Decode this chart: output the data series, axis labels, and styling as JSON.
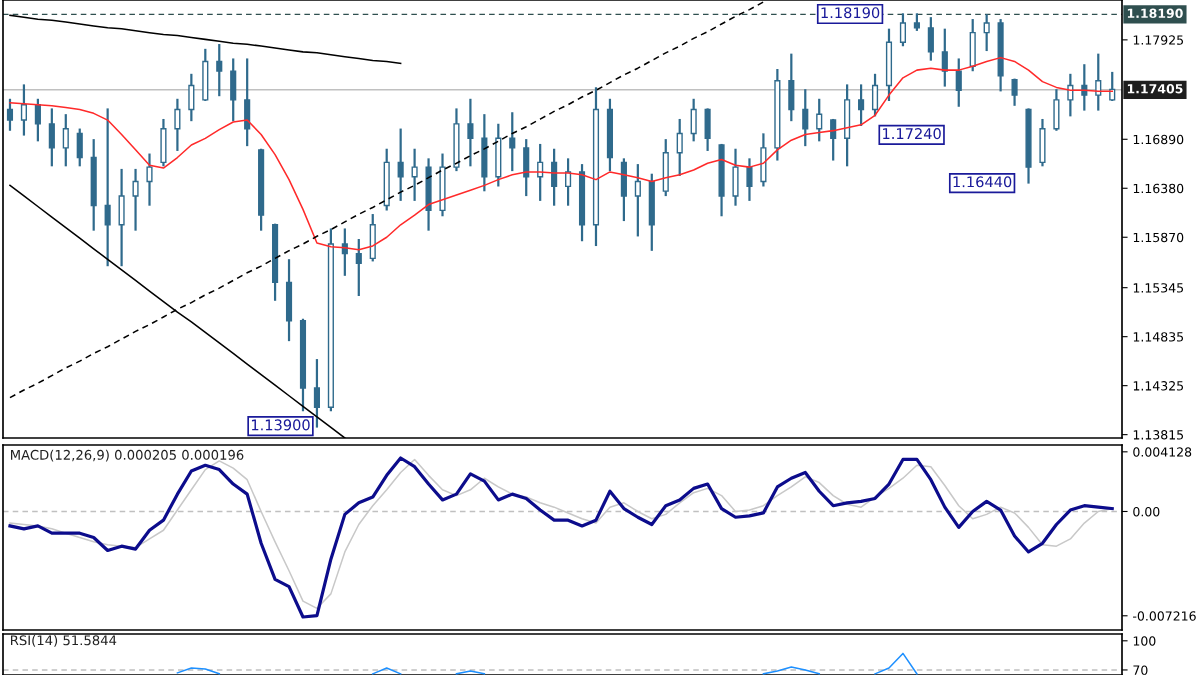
{
  "chart_data": [
    {
      "type": "candlestick",
      "color": "#2f6a8c",
      "tick_labels": "y",
      "categories": [
        null,
        null,
        null,
        null,
        null,
        null,
        null,
        null,
        null,
        null,
        null,
        null,
        null,
        null,
        null,
        null,
        null,
        null,
        null,
        null,
        null,
        null,
        null,
        null,
        null,
        null,
        null,
        null,
        null,
        null,
        null,
        null,
        null,
        null,
        null,
        null,
        null,
        null,
        null,
        null,
        null,
        null,
        null,
        null,
        null,
        null,
        null,
        null,
        null,
        null,
        null,
        null,
        null,
        null,
        null,
        null,
        null,
        null,
        null,
        null,
        null,
        null,
        null,
        null,
        null,
        null,
        null,
        null,
        null,
        null,
        null,
        null,
        null,
        null,
        null,
        null,
        null,
        null,
        null,
        null
      ],
      "ohlc": [
        [
          1.172,
          1.173,
          1.1699,
          1.1709
        ],
        [
          1.1709,
          1.1745,
          1.1694,
          1.1725
        ],
        [
          1.1725,
          1.173,
          1.1688,
          1.1705
        ],
        [
          1.1705,
          1.172,
          1.1662,
          1.168
        ],
        [
          1.168,
          1.1714,
          1.1662,
          1.17
        ],
        [
          1.1695,
          1.1699,
          1.1662,
          1.167
        ],
        [
          1.167,
          1.1688,
          1.1595,
          1.162
        ],
        [
          1.162,
          1.172,
          1.1558,
          1.16
        ],
        [
          1.16,
          1.1657,
          1.1558,
          1.163
        ],
        [
          1.163,
          1.1657,
          1.1595,
          1.1645
        ],
        [
          1.1645,
          1.1673,
          1.1621,
          1.166
        ],
        [
          1.1665,
          1.1709,
          1.1662,
          1.17
        ],
        [
          1.17,
          1.173,
          1.1678,
          1.172
        ],
        [
          1.172,
          1.1756,
          1.1709,
          1.1745
        ],
        [
          1.173,
          1.1782,
          1.173,
          1.177
        ],
        [
          1.177,
          1.1787,
          1.1735,
          1.176
        ],
        [
          1.176,
          1.1772,
          1.1709,
          1.173
        ],
        [
          1.173,
          1.1772,
          1.1683,
          1.17
        ],
        [
          1.1678,
          1.1678,
          1.1595,
          1.161
        ],
        [
          1.16,
          1.16,
          1.1522,
          1.154
        ],
        [
          1.154,
          1.1563,
          1.148,
          1.15
        ],
        [
          1.15,
          1.1501,
          1.1407,
          1.143
        ],
        [
          1.143,
          1.1459,
          1.139,
          1.141
        ],
        [
          1.141,
          1.1595,
          1.1407,
          1.158
        ],
        [
          1.158,
          1.1595,
          1.1548,
          1.157
        ],
        [
          1.157,
          1.1584,
          1.1527,
          1.156
        ],
        [
          1.1565,
          1.161,
          1.1563,
          1.16
        ],
        [
          1.162,
          1.1678,
          1.1616,
          1.1665
        ],
        [
          1.1665,
          1.1699,
          1.1626,
          1.165
        ],
        [
          1.165,
          1.1678,
          1.1626,
          1.166
        ],
        [
          1.166,
          1.1668,
          1.1595,
          1.1615
        ],
        [
          1.1615,
          1.1673,
          1.161,
          1.166
        ],
        [
          1.166,
          1.172,
          1.1657,
          1.1705
        ],
        [
          1.1705,
          1.173,
          1.1662,
          1.169
        ],
        [
          1.169,
          1.1714,
          1.1636,
          1.165
        ],
        [
          1.165,
          1.1704,
          1.1641,
          1.169
        ],
        [
          1.169,
          1.1716,
          1.1657,
          1.168
        ],
        [
          1.168,
          1.1688,
          1.1631,
          1.165
        ],
        [
          1.165,
          1.1683,
          1.1626,
          1.1665
        ],
        [
          1.1665,
          1.1678,
          1.1621,
          1.164
        ],
        [
          1.164,
          1.1668,
          1.1621,
          1.1655
        ],
        [
          1.1655,
          1.1662,
          1.1584,
          1.16
        ],
        [
          1.16,
          1.1742,
          1.1579,
          1.172
        ],
        [
          1.172,
          1.173,
          1.1657,
          1.167
        ],
        [
          1.1665,
          1.1668,
          1.1605,
          1.163
        ],
        [
          1.163,
          1.1662,
          1.1589,
          1.1645
        ],
        [
          1.1645,
          1.1652,
          1.1574,
          1.16
        ],
        [
          1.1635,
          1.1688,
          1.1631,
          1.1675
        ],
        [
          1.1675,
          1.1709,
          1.1652,
          1.1695
        ],
        [
          1.1695,
          1.173,
          1.1688,
          1.172
        ],
        [
          1.172,
          1.172,
          1.1678,
          1.169
        ],
        [
          1.1683,
          1.1683,
          1.161,
          1.163
        ],
        [
          1.163,
          1.1678,
          1.1621,
          1.166
        ],
        [
          1.166,
          1.1668,
          1.1626,
          1.164
        ],
        [
          1.1645,
          1.1694,
          1.1641,
          1.168
        ],
        [
          1.168,
          1.1761,
          1.1668,
          1.175
        ],
        [
          1.175,
          1.1777,
          1.1709,
          1.172
        ],
        [
          1.172,
          1.174,
          1.1683,
          1.17
        ],
        [
          1.17,
          1.173,
          1.1688,
          1.1715
        ],
        [
          1.1709,
          1.1709,
          1.1668,
          1.169
        ],
        [
          1.169,
          1.1745,
          1.1662,
          1.173
        ],
        [
          1.173,
          1.1745,
          1.1704,
          1.172
        ],
        [
          1.172,
          1.1756,
          1.1714,
          1.1745
        ],
        [
          1.1745,
          1.1803,
          1.173,
          1.179
        ],
        [
          1.179,
          1.1819,
          1.1787,
          1.181
        ],
        [
          1.181,
          1.1819,
          1.1803,
          1.1805
        ],
        [
          1.1805,
          1.1815,
          1.1772,
          1.178
        ],
        [
          1.178,
          1.1803,
          1.1745,
          1.176
        ],
        [
          1.176,
          1.1772,
          1.1724,
          1.174
        ],
        [
          1.1765,
          1.1813,
          1.1761,
          1.18
        ],
        [
          1.18,
          1.1818,
          1.1782,
          1.181
        ],
        [
          1.181,
          1.1813,
          1.174,
          1.1755
        ],
        [
          1.1751,
          1.1751,
          1.1725,
          1.1735
        ],
        [
          1.172,
          1.172,
          1.1644,
          1.166
        ],
        [
          1.1665,
          1.1709,
          1.1662,
          1.17
        ],
        [
          1.17,
          1.174,
          1.1699,
          1.173
        ],
        [
          1.173,
          1.1756,
          1.1714,
          1.1745
        ],
        [
          1.1745,
          1.1766,
          1.172,
          1.1735
        ],
        [
          1.1735,
          1.1777,
          1.172,
          1.175
        ],
        [
          1.173,
          1.1758,
          1.173,
          1.1741
        ]
      ],
      "series": [
        {
          "type": "line",
          "color": "#ff2a2a",
          "line_style": "solid",
          "values": [
            1.1727,
            1.1726,
            1.1725,
            1.1724,
            1.1722,
            1.172,
            1.1716,
            1.1709,
            1.1694,
            1.1678,
            1.1662,
            1.1659,
            1.167,
            1.1683,
            1.169,
            1.1699,
            1.1707,
            1.1709,
            1.1694,
            1.1673,
            1.1647,
            1.1616,
            1.1581,
            1.1577,
            1.1576,
            1.1574,
            1.1578,
            1.1587,
            1.16,
            1.161,
            1.1621,
            1.1626,
            1.1631,
            1.1636,
            1.1641,
            1.1647,
            1.1652,
            1.1655,
            1.1655,
            1.1654,
            1.1654,
            1.1652,
            1.1647,
            1.1655,
            1.1652,
            1.1649,
            1.1645,
            1.1649,
            1.1652,
            1.1657,
            1.1664,
            1.1668,
            1.1662,
            1.166,
            1.1664,
            1.1678,
            1.1688,
            1.1694,
            1.1696,
            1.1698,
            1.1701,
            1.1704,
            1.1714,
            1.1735,
            1.1753,
            1.1761,
            1.1763,
            1.1761,
            1.1761,
            1.1765,
            1.177,
            1.1774,
            1.177,
            1.1761,
            1.1749,
            1.1743,
            1.174,
            1.174,
            1.1739,
            1.1739
          ]
        },
        {
          "type": "line",
          "color": "#000000",
          "line_style": "solid",
          "values": [
            1.1818,
            1.1816,
            1.1814,
            1.1813,
            1.1811,
            1.1809,
            1.1807,
            1.1805,
            1.1804,
            1.1802,
            1.18,
            1.1798,
            1.1797,
            1.1795,
            1.1793,
            1.1791,
            1.1789,
            1.1788,
            1.1786,
            1.1784,
            1.1782,
            1.178,
            1.1779,
            1.1777,
            1.1775,
            1.1773,
            1.1771,
            1.177,
            1.1768,
            null,
            null,
            null,
            null,
            null,
            null,
            null,
            null,
            null,
            null,
            null,
            null,
            null,
            null,
            null,
            null,
            null,
            null,
            null,
            null,
            null,
            null,
            null,
            null,
            null,
            null,
            null,
            null,
            null,
            null,
            null,
            null,
            null,
            null,
            null,
            null,
            null,
            null,
            null,
            null,
            null,
            null,
            null,
            null,
            null,
            null,
            null,
            null,
            null,
            null,
            null
          ]
        },
        {
          "type": "line",
          "color": "#000000",
          "line_style": "solid",
          "values": [
            1.1641,
            1.163,
            1.1619,
            1.1608,
            1.1597,
            1.1586,
            1.1575,
            1.1564,
            1.1553,
            1.1542,
            1.1531,
            1.152,
            1.1509,
            1.1499,
            1.1488,
            1.1477,
            1.1466,
            1.1455,
            1.1444,
            1.1433,
            1.1422,
            1.1411,
            1.14,
            1.1389,
            1.1378,
            null,
            null,
            null,
            null,
            null,
            null,
            null,
            null,
            null,
            null,
            null,
            null,
            null,
            null,
            null,
            null,
            null,
            null,
            null,
            null,
            null,
            null,
            null,
            null,
            null,
            null,
            null,
            null,
            null,
            null,
            null,
            null,
            null,
            null,
            null,
            null,
            null,
            null,
            null,
            null,
            null,
            null,
            null,
            null,
            null,
            null,
            null,
            null,
            null,
            null,
            null,
            null,
            null,
            null,
            null
          ]
        },
        {
          "type": "line",
          "color": "#000000",
          "line_style": "dashed",
          "values": [
            1.142,
            1.1428,
            1.1435,
            1.1443,
            1.1451,
            1.1458,
            1.1466,
            1.1473,
            1.1481,
            1.1489,
            1.1496,
            1.1504,
            1.1512,
            1.1519,
            1.1527,
            1.1534,
            1.1542,
            1.155,
            1.1557,
            1.1565,
            1.1573,
            1.158,
            1.1588,
            1.1595,
            1.1603,
            1.1611,
            1.1618,
            1.1626,
            1.1634,
            1.1641,
            1.1649,
            1.1657,
            1.1664,
            1.1672,
            1.1679,
            1.1687,
            1.1695,
            1.1702,
            1.171,
            1.1718,
            1.1725,
            1.1733,
            1.174,
            1.1748,
            1.1756,
            1.1763,
            1.1771,
            1.1779,
            1.1786,
            1.1794,
            1.1801,
            1.1809,
            1.1817,
            1.1824,
            1.1832,
            null,
            null,
            null,
            null,
            null,
            null,
            null,
            null,
            null,
            null,
            null,
            null,
            null,
            null,
            null,
            null,
            null,
            null,
            null,
            null,
            null,
            null,
            null,
            null,
            null
          ]
        }
      ],
      "ref_lines": [
        {
          "axis": "y",
          "value": 1.1819,
          "label": "1.18190",
          "color": "#2f4f4f",
          "line_style": "dashed"
        },
        {
          "axis": "y",
          "value": 1.17405,
          "label": "1.17405",
          "color": "#c0c0c0",
          "line_style": "solid"
        }
      ],
      "annotations": [
        "1.13900",
        "1.18190",
        "1.17240",
        "1.16440"
      ],
      "ylim": [
        1.1378,
        1.1834
      ],
      "yticks": [
        {
          "value": 1.13815,
          "label": "1.13815"
        },
        {
          "value": 1.14325,
          "label": "1.14325"
        },
        {
          "value": 1.14835,
          "label": "1.14835"
        },
        {
          "value": 1.15345,
          "label": "1.15345"
        },
        {
          "value": 1.1587,
          "label": "1.15870"
        },
        {
          "value": 1.1638,
          "label": "1.16380"
        },
        {
          "value": 1.1689,
          "label": "1.16890"
        },
        {
          "value": 1.17925,
          "label": "1.17925"
        }
      ]
    },
    {
      "type": "line",
      "title": "MACD(12,26,9) 0.000205 0.000196",
      "tick_labels": "y",
      "categories": [
        null,
        null,
        null,
        null,
        null,
        null,
        null,
        null,
        null,
        null,
        null,
        null,
        null,
        null,
        null,
        null,
        null,
        null,
        null,
        null,
        null,
        null,
        null,
        null,
        null,
        null,
        null,
        null,
        null,
        null,
        null,
        null,
        null,
        null,
        null,
        null,
        null,
        null,
        null,
        null,
        null,
        null,
        null,
        null,
        null,
        null,
        null,
        null,
        null,
        null,
        null,
        null,
        null,
        null,
        null,
        null,
        null,
        null,
        null,
        null,
        null,
        null,
        null,
        null,
        null,
        null,
        null,
        null,
        null,
        null,
        null,
        null,
        null,
        null,
        null,
        null,
        null,
        null,
        null,
        null
      ],
      "series": [
        {
          "color": "#c8c8c8",
          "line_style": "solid",
          "values": [
            -0.0008,
            -0.0009,
            -0.001,
            -0.0012,
            -0.0015,
            -0.0018,
            -0.0021,
            -0.0023,
            -0.0024,
            -0.0025,
            -0.0019,
            -0.0013,
            0.0001,
            0.0015,
            0.0029,
            0.0035,
            0.003,
            0.0022,
            0.0,
            -0.0021,
            -0.0041,
            -0.0062,
            -0.0067,
            -0.0057,
            -0.0028,
            -0.0009,
            0.0004,
            0.0015,
            0.0027,
            0.0036,
            0.0025,
            0.0015,
            0.0011,
            0.0015,
            0.0023,
            0.0017,
            0.0012,
            0.001,
            0.0006,
            0.0003,
            -0.0001,
            -0.0005,
            -0.0008,
            0.0003,
            0.0006,
            0.0,
            -0.0005,
            -0.0002,
            0.0006,
            0.0013,
            0.0016,
            0.0011,
            0.0,
            0.0001,
            0.0004,
            0.0011,
            0.0017,
            0.0024,
            0.002,
            0.0011,
            0.0005,
            0.0003,
            0.001,
            0.0016,
            0.0023,
            0.0032,
            0.0031,
            0.0018,
            0.0004,
            -0.0005,
            -0.0002,
            0.0003,
            -0.0001,
            -0.0011,
            -0.0023,
            -0.0024,
            -0.0019,
            -0.0008,
            0.0,
            0.0002
          ]
        },
        {
          "color": "#0c0c8c",
          "line_style": "solid",
          "values": [
            -0.001,
            -0.0012,
            -0.001,
            -0.0015,
            -0.0015,
            -0.0015,
            -0.0018,
            -0.0027,
            -0.0024,
            -0.0026,
            -0.0013,
            -0.0006,
            0.0012,
            0.0028,
            0.0032,
            0.0029,
            0.0019,
            0.0012,
            -0.0022,
            -0.0047,
            -0.0052,
            -0.0073,
            -0.0072,
            -0.0033,
            -0.0002,
            0.0006,
            0.001,
            0.0025,
            0.0037,
            0.0031,
            0.0019,
            0.0008,
            0.0012,
            0.0026,
            0.0021,
            0.0008,
            0.0012,
            0.0009,
            0.0001,
            -0.0006,
            -0.0006,
            -0.001,
            -0.0006,
            0.0014,
            0.0002,
            -0.0004,
            -0.0009,
            0.0004,
            0.0008,
            0.0016,
            0.0019,
            0.0002,
            -0.0004,
            -0.0003,
            -0.0001,
            0.0017,
            0.0023,
            0.0027,
            0.0014,
            0.0004,
            0.0006,
            0.0007,
            0.0009,
            0.0019,
            0.0036,
            0.0036,
            0.0022,
            0.0003,
            -0.0011,
            0.0,
            0.0007,
            0.0001,
            -0.0017,
            -0.0028,
            -0.0022,
            -0.0009,
            0.0001,
            0.0004,
            0.0003,
            0.0002
          ]
        }
      ],
      "ref_lines": [
        {
          "axis": "y",
          "value": 0,
          "color": "#c0c0c0",
          "line_style": "dashed"
        }
      ],
      "ylim": [
        -0.0082,
        0.0046
      ],
      "yticks": [
        {
          "value": 0.004128,
          "label": "0.004128"
        },
        {
          "value": 0,
          "label": "0.00"
        },
        {
          "value": -0.007216,
          "label": "-0.007216"
        }
      ]
    },
    {
      "type": "line",
      "title": "RSI(14) 51.5844",
      "tick_labels": "y",
      "categories": [
        null,
        null,
        null,
        null,
        null,
        null,
        null,
        null,
        null,
        null,
        null,
        null,
        null,
        null,
        null,
        null,
        null,
        null,
        null,
        null,
        null,
        null,
        null,
        null,
        null,
        null,
        null,
        null,
        null,
        null,
        null,
        null,
        null,
        null,
        null,
        null,
        null,
        null,
        null,
        null,
        null,
        null,
        null,
        null,
        null,
        null,
        null,
        null,
        null,
        null,
        null,
        null,
        null,
        null,
        null,
        null,
        null,
        null,
        null,
        null,
        null,
        null,
        null,
        null,
        null,
        null,
        null,
        null,
        null,
        null,
        null,
        null,
        null,
        null,
        null,
        null,
        null,
        null,
        null,
        null
      ],
      "series": [
        {
          "color": "#1e90ff",
          "line_style": "solid",
          "values": [
            null,
            null,
            null,
            null,
            null,
            null,
            null,
            null,
            null,
            null,
            null,
            null,
            67,
            72,
            71,
            66,
            null,
            null,
            null,
            null,
            null,
            null,
            null,
            null,
            null,
            null,
            66,
            72,
            66,
            null,
            null,
            null,
            66,
            69,
            66,
            null,
            null,
            null,
            null,
            null,
            null,
            null,
            null,
            null,
            null,
            null,
            null,
            null,
            null,
            null,
            null,
            null,
            null,
            null,
            66,
            69,
            73,
            70,
            66,
            null,
            null,
            null,
            66,
            72,
            87,
            66,
            null,
            null,
            null,
            null,
            null,
            null,
            null,
            null,
            null,
            null,
            null,
            null,
            null,
            null
          ]
        }
      ],
      "ref_lines": [
        {
          "axis": "y",
          "value": 70,
          "color": "#c0c0c0",
          "line_style": "dashed"
        }
      ],
      "ylim": [
        64.8,
        107
      ],
      "yticks": [
        100,
        70
      ]
    }
  ]
}
